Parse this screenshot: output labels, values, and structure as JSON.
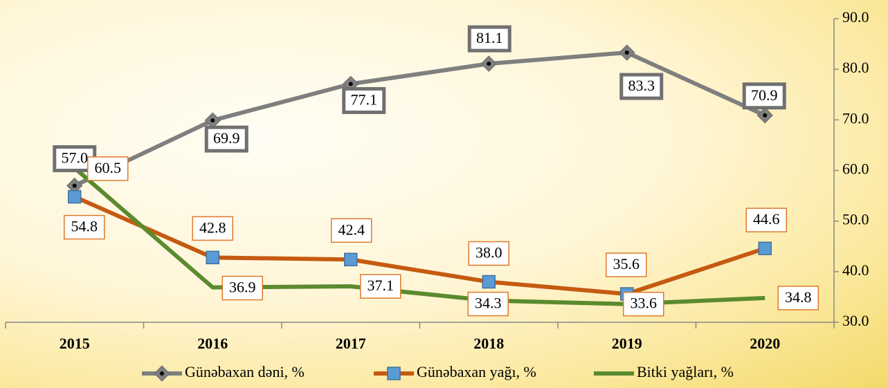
{
  "chart_data": {
    "type": "line",
    "categories": [
      "2015",
      "2016",
      "2017",
      "2018",
      "2019",
      "2020"
    ],
    "series": [
      {
        "name": "Günəbaxan dəni, %",
        "color": "#7f7f7f",
        "values": [
          57.0,
          69.9,
          77.1,
          81.1,
          83.3,
          70.9
        ],
        "value_labels": [
          "57.0",
          "69.9",
          "77.1",
          "81.1",
          "83.3",
          "70.9"
        ]
      },
      {
        "name": "Günəbaxan yağı, %",
        "color": "#c55a11",
        "values": [
          54.8,
          42.8,
          42.4,
          38.0,
          35.6,
          44.6
        ],
        "value_labels": [
          "54.8",
          "42.8",
          "42.4",
          "38.0",
          "35.6",
          "44.6"
        ]
      },
      {
        "name": "Bitki yağları, %",
        "color": "#5b8a2f",
        "values": [
          60.5,
          36.9,
          37.1,
          34.3,
          33.6,
          34.8
        ],
        "value_labels": [
          "60.5",
          "36.9",
          "37.1",
          "34.3",
          "33.6",
          "34.8"
        ]
      }
    ],
    "ylim": [
      30,
      90
    ],
    "yticks": [
      {
        "value": 30,
        "label": "30.0"
      },
      {
        "value": 40,
        "label": "40.0"
      },
      {
        "value": 50,
        "label": "50.0"
      },
      {
        "value": 60,
        "label": "60.0"
      },
      {
        "value": 70,
        "label": "70.0"
      },
      {
        "value": 80,
        "label": "80.0"
      },
      {
        "value": 90,
        "label": "90.0"
      }
    ],
    "grid": false
  }
}
